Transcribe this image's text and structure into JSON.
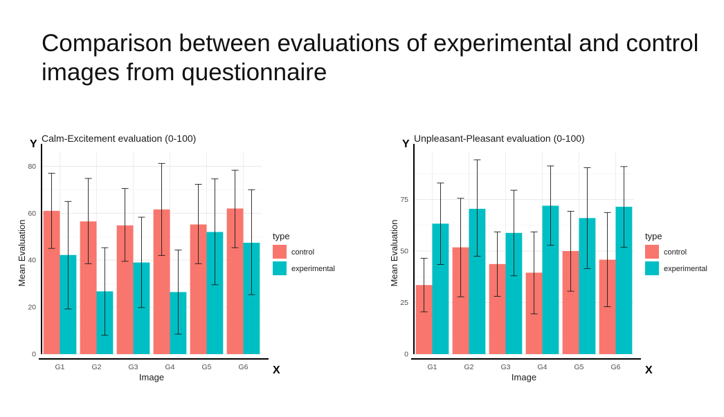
{
  "slide": {
    "title_line1": "Comparison between evaluations of experimental and control",
    "title_line2": "images from questionnaire"
  },
  "colors": {
    "control": "#F8766D",
    "experimental": "#00BFC4"
  },
  "legend": {
    "title": "type",
    "items": [
      {
        "label": "control",
        "color": "#F8766D"
      },
      {
        "label": "experimental",
        "color": "#00BFC4"
      }
    ]
  },
  "chart_data": [
    {
      "type": "bar",
      "title": "Calm-Excitement evaluation (0-100)",
      "xlabel": "Image",
      "ylabel": "Mean Evaluation",
      "x_marker": "X",
      "y_marker": "Y",
      "categories": [
        "G1",
        "G2",
        "G3",
        "G4",
        "G5",
        "G6"
      ],
      "ylim": [
        0,
        86
      ],
      "yticks": [
        0,
        20,
        40,
        60,
        80
      ],
      "grid": true,
      "legend_position": "right",
      "series": [
        {
          "name": "control",
          "values": [
            61,
            56.5,
            54.8,
            61.6,
            55.2,
            62
          ],
          "err_low": [
            45,
            38.5,
            39.5,
            42,
            38.5,
            45.3
          ],
          "err_high": [
            77,
            74.8,
            70.5,
            81.2,
            72.3,
            78.3
          ]
        },
        {
          "name": "experimental",
          "values": [
            42.2,
            26.7,
            39,
            26.4,
            52,
            47.4
          ],
          "err_low": [
            19.2,
            8,
            19.8,
            8.5,
            29.5,
            25.3
          ],
          "err_high": [
            65,
            45.3,
            58.3,
            44.3,
            74.6,
            70
          ]
        }
      ]
    },
    {
      "type": "bar",
      "title": "Unpleasant-Pleasant evaluation (0-100)",
      "xlabel": "Image",
      "ylabel": "Mean Evaluation",
      "x_marker": "X",
      "y_marker": "Y",
      "categories": [
        "G1",
        "G2",
        "G3",
        "G4",
        "G5",
        "G6"
      ],
      "ylim": [
        0,
        98
      ],
      "yticks": [
        0,
        25,
        50,
        75
      ],
      "grid": true,
      "legend_position": "right",
      "series": [
        {
          "name": "control",
          "values": [
            33.5,
            51.8,
            43.7,
            39.5,
            50,
            45.8
          ],
          "err_low": [
            20.5,
            27.8,
            28,
            19.5,
            30.5,
            23
          ],
          "err_high": [
            46.5,
            75.6,
            59.3,
            59.3,
            69.3,
            68.7
          ]
        },
        {
          "name": "experimental",
          "values": [
            63.3,
            70.5,
            58.8,
            72,
            66,
            71.5
          ],
          "err_low": [
            43.5,
            47.5,
            38,
            52.8,
            41.5,
            51.8
          ],
          "err_high": [
            83,
            94.3,
            79.5,
            91.3,
            90.5,
            91
          ]
        }
      ]
    }
  ]
}
